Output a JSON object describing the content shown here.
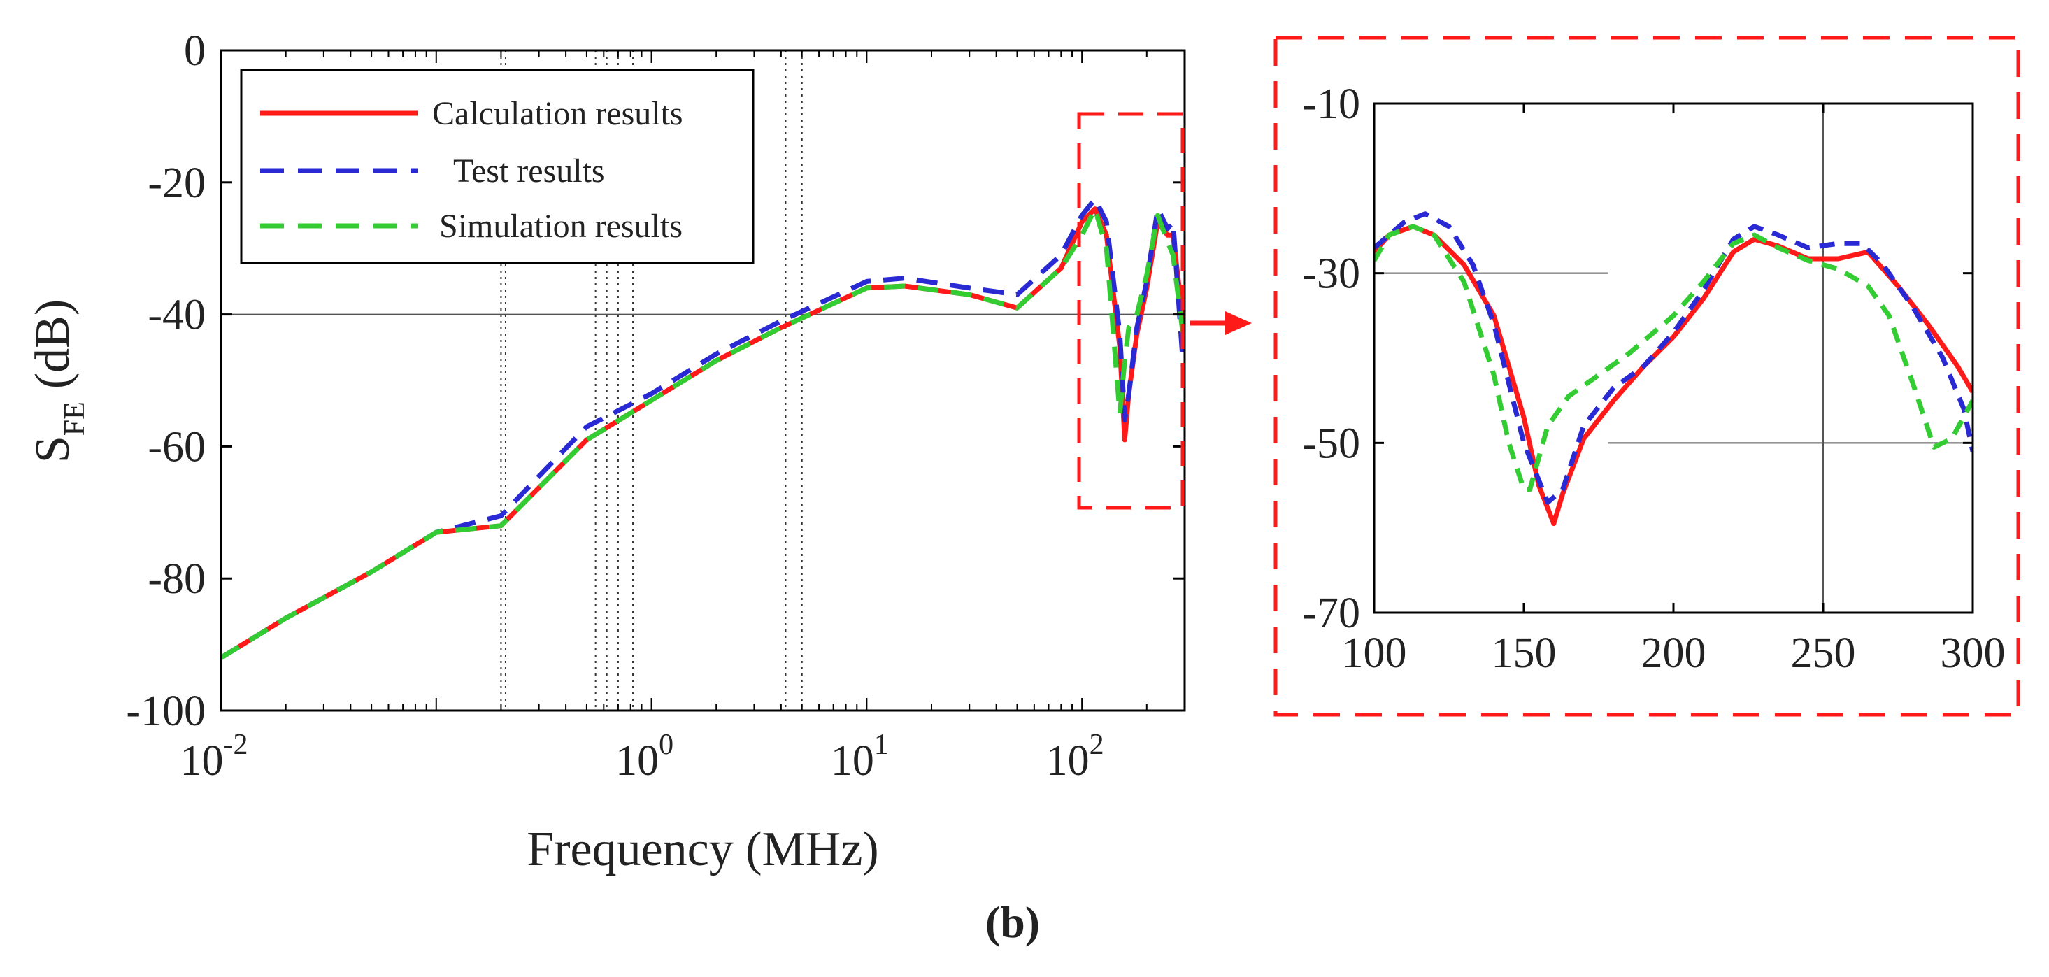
{
  "chart_data": [
    {
      "type": "line",
      "panel": "main",
      "x_scale": "log",
      "xlabel": "Frequency (MHz)",
      "ylabel_main": "S",
      "ylabel_sub": "FE",
      "ylabel_unit": "(dB)",
      "xlim": [
        0.01,
        300
      ],
      "ylim": [
        -100,
        0
      ],
      "yticks": [
        0,
        -20,
        -40,
        -60,
        -80,
        -100
      ],
      "ytick_labels": [
        "0",
        "-20",
        "-40",
        "-60",
        "-80",
        "-100"
      ],
      "xticks": [
        0.01,
        1,
        10,
        100
      ],
      "xtick_labels": [
        {
          "base": "10",
          "exp": "-2"
        },
        {
          "base": "10",
          "exp": "0"
        },
        {
          "base": "10",
          "exp": "1"
        },
        {
          "base": "10",
          "exp": "2"
        }
      ],
      "legend": {
        "position": "top-left",
        "entries": [
          "Calculation results",
          "Test results",
          "Simulation results"
        ]
      },
      "reference_lines": {
        "horizontal_y": [
          -40
        ],
        "vertical_x": [
          0.2,
          0.21,
          0.55,
          0.62,
          0.7,
          0.82,
          4.2,
          5.0
        ]
      },
      "series": [
        {
          "name": "Calculation results",
          "color": "#ff1a1a",
          "style": "solid",
          "x": [
            0.01,
            0.02,
            0.05,
            0.1,
            0.2,
            0.5,
            1,
            2,
            4,
            10,
            15,
            30,
            50,
            80,
            100,
            115,
            130,
            150,
            158,
            165,
            180,
            200,
            225,
            250,
            265,
            300
          ],
          "y": [
            -92,
            -86,
            -79,
            -73,
            -72,
            -59,
            -53,
            -47,
            -42,
            -36,
            -35.7,
            -37,
            -39,
            -33,
            -26,
            -24,
            -28,
            -45,
            -59,
            -52,
            -43,
            -36,
            -26,
            -28,
            -28,
            -43
          ]
        },
        {
          "name": "Test results",
          "color": "#2a2ad4",
          "style": "dashed",
          "x": [
            0.01,
            0.02,
            0.05,
            0.1,
            0.2,
            0.5,
            1,
            2,
            4,
            10,
            15,
            30,
            50,
            80,
            100,
            115,
            130,
            150,
            158,
            165,
            180,
            200,
            225,
            250,
            265,
            300
          ],
          "y": [
            -92,
            -86,
            -79,
            -73,
            -70.5,
            -57,
            -52,
            -46,
            -41,
            -35,
            -34.5,
            -36,
            -37,
            -31,
            -25,
            -22.5,
            -26,
            -43,
            -56,
            -52,
            -42,
            -35,
            -24,
            -27,
            -26,
            -51
          ]
        },
        {
          "name": "Simulation results",
          "color": "#33cc33",
          "style": "dashed",
          "x": [
            0.01,
            0.02,
            0.05,
            0.1,
            0.2,
            0.5,
            1,
            2,
            4,
            10,
            15,
            30,
            50,
            80,
            100,
            115,
            130,
            150,
            158,
            165,
            180,
            200,
            225,
            250,
            265,
            300
          ],
          "y": [
            -92,
            -86,
            -79,
            -73,
            -72,
            -59,
            -53,
            -47,
            -42,
            -36,
            -35.7,
            -37,
            -39,
            -33,
            -28,
            -24,
            -30,
            -55,
            -47,
            -42,
            -40,
            -34,
            -25,
            -29,
            -31,
            -45
          ]
        }
      ]
    },
    {
      "type": "line",
      "panel": "zoom-inset",
      "xlim": [
        100,
        300
      ],
      "ylim": [
        -70,
        -10
      ],
      "xticks": [
        100,
        150,
        200,
        250,
        300
      ],
      "xtick_labels": [
        "100",
        "150",
        "200",
        "250",
        "300"
      ],
      "yticks": [
        -10,
        -30,
        -50,
        -70
      ],
      "ytick_labels": [
        "-10",
        "-30",
        "-50",
        "-70"
      ],
      "reference_lines": {
        "horizontal": [
          {
            "y": -30,
            "x0": 100,
            "x1": 178
          },
          {
            "y": -50,
            "x0": 178,
            "x1": 300
          }
        ],
        "vertical_x": [
          250
        ]
      },
      "series": [
        {
          "name": "Calculation results",
          "color": "#ff1a1a",
          "style": "solid",
          "x": [
            100,
            105,
            113,
            120,
            130,
            140,
            150,
            155,
            160,
            163,
            170,
            180,
            190,
            200,
            210,
            220,
            227,
            235,
            245,
            255,
            265,
            275,
            285,
            295,
            300
          ],
          "y": [
            -27.5,
            -25.5,
            -24.5,
            -25.5,
            -29,
            -35,
            -47,
            -55,
            -59.5,
            -56,
            -49.5,
            -45,
            -41,
            -37.5,
            -33,
            -27.5,
            -26,
            -26.8,
            -28.3,
            -28.3,
            -27.5,
            -31.5,
            -36,
            -41,
            -44
          ]
        },
        {
          "name": "Test results",
          "color": "#2a2ad4",
          "style": "dashed",
          "x": [
            100,
            105,
            110,
            117,
            125,
            133,
            140,
            150,
            158,
            163,
            170,
            180,
            190,
            200,
            210,
            220,
            227,
            235,
            245,
            255,
            263,
            270,
            280,
            290,
            297,
            300
          ],
          "y": [
            -27,
            -25.5,
            -24,
            -23,
            -24.5,
            -29,
            -36,
            -50,
            -57,
            -55.5,
            -48,
            -43.5,
            -41,
            -37,
            -32,
            -26,
            -24.5,
            -25.5,
            -27,
            -26.5,
            -26.5,
            -29,
            -34,
            -40,
            -46,
            -51
          ]
        },
        {
          "name": "Simulation results",
          "color": "#33cc33",
          "style": "dashed",
          "x": [
            100,
            105,
            113,
            120,
            130,
            140,
            145,
            150,
            152,
            158,
            165,
            175,
            185,
            200,
            210,
            220,
            227,
            235,
            245,
            255,
            265,
            272,
            280,
            287,
            293,
            300
          ],
          "y": [
            -28.5,
            -25.5,
            -24.5,
            -25.5,
            -31,
            -42,
            -50,
            -55.5,
            -55.5,
            -48,
            -44.5,
            -42,
            -39.5,
            -35,
            -31,
            -26.5,
            -25.5,
            -27,
            -28.5,
            -29.5,
            -31.5,
            -35,
            -43,
            -50.5,
            -49.5,
            -45
          ]
        }
      ]
    }
  ],
  "caption": "(b)"
}
